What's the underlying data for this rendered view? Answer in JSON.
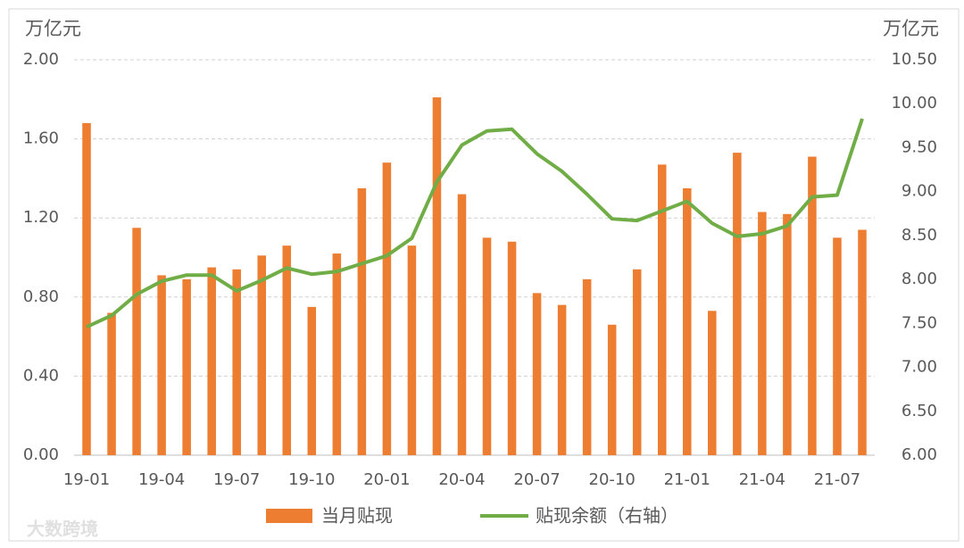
{
  "chart_data": {
    "type": "bar-line",
    "y_label": "万亿元",
    "y2_label": "万亿元",
    "categories": [
      "19-01",
      null,
      null,
      "19-04",
      null,
      null,
      "19-07",
      null,
      null,
      "19-10",
      null,
      null,
      "20-01",
      null,
      null,
      "20-04",
      null,
      null,
      "20-07",
      null,
      null,
      "20-10",
      null,
      null,
      "21-01",
      null,
      null,
      "21-04",
      null,
      null,
      "21-07",
      null
    ],
    "series": [
      {
        "name": "当月贴现",
        "type": "bar",
        "color": "#ed7d31",
        "values": [
          1.68,
          0.72,
          1.15,
          0.91,
          0.89,
          0.95,
          0.94,
          1.01,
          1.06,
          0.75,
          1.02,
          1.35,
          1.48,
          1.06,
          1.81,
          1.32,
          1.1,
          1.08,
          0.82,
          0.76,
          0.89,
          0.66,
          0.94,
          1.47,
          1.35,
          0.73,
          1.53,
          1.23,
          1.22,
          1.51,
          1.1,
          1.14
        ]
      },
      {
        "name": "贴现余额（右轴）",
        "type": "line",
        "axis": "y2",
        "color": "#70ad47",
        "values": [
          7.46,
          7.59,
          7.83,
          7.98,
          8.05,
          8.05,
          7.87,
          7.99,
          8.13,
          8.06,
          8.09,
          8.18,
          8.27,
          8.47,
          9.11,
          9.53,
          9.69,
          9.71,
          9.43,
          9.23,
          8.97,
          8.69,
          8.67,
          8.78,
          8.89,
          8.64,
          8.49,
          8.52,
          8.61,
          8.94,
          8.96,
          9.83
        ]
      }
    ],
    "ylim": [
      0,
      2
    ],
    "yticks": [
      {
        "value": 0,
        "label": "0.00"
      },
      {
        "value": 0.4,
        "label": "0.40"
      },
      {
        "value": 0.8,
        "label": "0.80"
      },
      {
        "value": 1.2,
        "label": "1.20"
      },
      {
        "value": 1.6,
        "label": "1.60"
      },
      {
        "value": 2,
        "label": "2.00"
      }
    ],
    "y2lim": [
      6,
      10.5
    ],
    "y2ticks": [
      {
        "value": 6,
        "label": "6.00"
      },
      {
        "value": 6.5,
        "label": "6.50"
      },
      {
        "value": 7,
        "label": "7.00"
      },
      {
        "value": 7.5,
        "label": "7.50"
      },
      {
        "value": 8,
        "label": "8.00"
      },
      {
        "value": 8.5,
        "label": "8.50"
      },
      {
        "value": 9,
        "label": "9.00"
      },
      {
        "value": 9.5,
        "label": "9.50"
      },
      {
        "value": 10,
        "label": "10.00"
      },
      {
        "value": 10.5,
        "label": "10.50"
      }
    ],
    "grid": true,
    "legend": "bottom",
    "watermark": "大数跨境"
  }
}
